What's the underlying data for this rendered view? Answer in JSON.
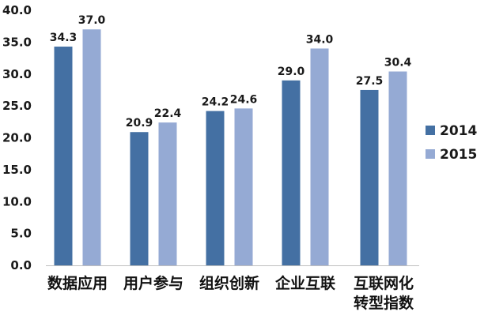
{
  "chart_data": {
    "type": "bar",
    "title": "",
    "xlabel": "",
    "ylabel": "",
    "ylim": [
      0,
      40
    ],
    "yticks": [
      "0.0",
      "5.0",
      "10.0",
      "15.0",
      "20.0",
      "25.0",
      "30.0",
      "35.0",
      "40.0"
    ],
    "grid": false,
    "legend_position": "right",
    "categories": [
      [
        "数据应用"
      ],
      [
        "用户参与"
      ],
      [
        "组织创新"
      ],
      [
        "企业互联"
      ],
      [
        "互联网化",
        "转型指数"
      ]
    ],
    "series": [
      {
        "name": "2014",
        "color": "#4470a3",
        "values": [
          34.3,
          20.9,
          24.2,
          29.0,
          27.5
        ],
        "labels": [
          "34.3",
          "20.9",
          "24.2",
          "29.0",
          "27.5"
        ]
      },
      {
        "name": "2015",
        "color": "#95aad4",
        "values": [
          37.0,
          22.4,
          24.6,
          34.0,
          30.4
        ],
        "labels": [
          "37.0",
          "22.4",
          "24.6",
          "34.0",
          "30.4"
        ]
      }
    ]
  }
}
